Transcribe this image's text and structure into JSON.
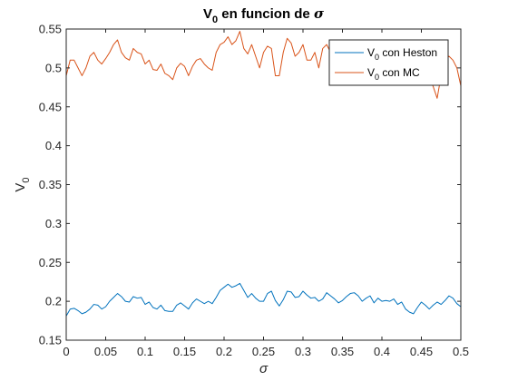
{
  "chart_data": {
    "type": "line",
    "title": {
      "main": "V",
      "sub": "0",
      "rest": " en funcion de ",
      "symbol": "σ"
    },
    "xlabel": "σ",
    "ylabel": {
      "main": "V",
      "sub": "0"
    },
    "xlim": [
      0,
      0.5
    ],
    "ylim": [
      0.15,
      0.55
    ],
    "xticks": [
      "0",
      "0.05",
      "0.1",
      "0.15",
      "0.2",
      "0.25",
      "0.3",
      "0.35",
      "0.4",
      "0.45",
      "0.5"
    ],
    "yticks": [
      "0.15",
      "0.2",
      "0.25",
      "0.3",
      "0.35",
      "0.4",
      "0.45",
      "0.5",
      "0.55"
    ],
    "grid": false,
    "legend_position": "top-right",
    "x": [
      0,
      0.005,
      0.01,
      0.015,
      0.02,
      0.025,
      0.03,
      0.035,
      0.04,
      0.045,
      0.05,
      0.055,
      0.06,
      0.065,
      0.07,
      0.075,
      0.08,
      0.085,
      0.09,
      0.095,
      0.1,
      0.105,
      0.11,
      0.115,
      0.12,
      0.125,
      0.13,
      0.135,
      0.14,
      0.145,
      0.15,
      0.155,
      0.16,
      0.165,
      0.17,
      0.175,
      0.18,
      0.185,
      0.19,
      0.195,
      0.2,
      0.205,
      0.21,
      0.215,
      0.22,
      0.225,
      0.23,
      0.235,
      0.24,
      0.245,
      0.25,
      0.255,
      0.26,
      0.265,
      0.27,
      0.275,
      0.28,
      0.285,
      0.29,
      0.295,
      0.3,
      0.305,
      0.31,
      0.315,
      0.32,
      0.325,
      0.33,
      0.335,
      0.34,
      0.345,
      0.35,
      0.355,
      0.36,
      0.365,
      0.37,
      0.375,
      0.38,
      0.385,
      0.39,
      0.395,
      0.4,
      0.405,
      0.41,
      0.415,
      0.42,
      0.425,
      0.43,
      0.435,
      0.44,
      0.445,
      0.45,
      0.455,
      0.46,
      0.465,
      0.47,
      0.475,
      0.48,
      0.485,
      0.49,
      0.495,
      0.5
    ],
    "series": [
      {
        "name": {
          "main": "V",
          "sub": "0",
          "rest": " con Heston"
        },
        "color": "#0072BD",
        "values": [
          0.181,
          0.19,
          0.191,
          0.188,
          0.184,
          0.186,
          0.19,
          0.196,
          0.195,
          0.19,
          0.193,
          0.2,
          0.205,
          0.21,
          0.206,
          0.2,
          0.199,
          0.206,
          0.204,
          0.205,
          0.196,
          0.199,
          0.192,
          0.19,
          0.195,
          0.188,
          0.187,
          0.187,
          0.195,
          0.198,
          0.194,
          0.19,
          0.198,
          0.203,
          0.2,
          0.197,
          0.2,
          0.197,
          0.205,
          0.214,
          0.218,
          0.222,
          0.218,
          0.22,
          0.223,
          0.214,
          0.205,
          0.21,
          0.204,
          0.2,
          0.2,
          0.21,
          0.213,
          0.201,
          0.194,
          0.202,
          0.213,
          0.212,
          0.205,
          0.206,
          0.213,
          0.208,
          0.204,
          0.205,
          0.2,
          0.203,
          0.211,
          0.207,
          0.203,
          0.198,
          0.201,
          0.206,
          0.21,
          0.211,
          0.207,
          0.2,
          0.204,
          0.207,
          0.198,
          0.204,
          0.2,
          0.201,
          0.2,
          0.203,
          0.196,
          0.199,
          0.19,
          0.186,
          0.184,
          0.192,
          0.199,
          0.195,
          0.19,
          0.195,
          0.199,
          0.196,
          0.201,
          0.207,
          0.204,
          0.197,
          0.193
        ]
      },
      {
        "name": {
          "main": "V",
          "sub": "0",
          "rest": " con MC"
        },
        "color": "#D95319",
        "values": [
          0.49,
          0.51,
          0.51,
          0.5,
          0.49,
          0.5,
          0.515,
          0.52,
          0.51,
          0.505,
          0.512,
          0.52,
          0.53,
          0.536,
          0.52,
          0.513,
          0.51,
          0.525,
          0.52,
          0.518,
          0.505,
          0.51,
          0.498,
          0.497,
          0.505,
          0.493,
          0.49,
          0.485,
          0.5,
          0.506,
          0.502,
          0.49,
          0.502,
          0.51,
          0.512,
          0.505,
          0.5,
          0.497,
          0.52,
          0.53,
          0.533,
          0.54,
          0.53,
          0.535,
          0.547,
          0.525,
          0.518,
          0.53,
          0.515,
          0.5,
          0.52,
          0.528,
          0.525,
          0.49,
          0.49,
          0.52,
          0.538,
          0.532,
          0.515,
          0.52,
          0.53,
          0.51,
          0.51,
          0.52,
          0.5,
          0.525,
          0.53,
          0.52,
          0.51,
          0.5,
          0.497,
          0.507,
          0.52,
          0.532,
          0.52,
          0.5,
          0.51,
          0.52,
          0.5,
          0.51,
          0.505,
          0.515,
          0.52,
          0.51,
          0.49,
          0.51,
          0.505,
          0.5,
          0.49,
          0.5,
          0.505,
          0.495,
          0.487,
          0.476,
          0.461,
          0.49,
          0.51,
          0.515,
          0.51,
          0.5,
          0.477
        ]
      }
    ]
  }
}
